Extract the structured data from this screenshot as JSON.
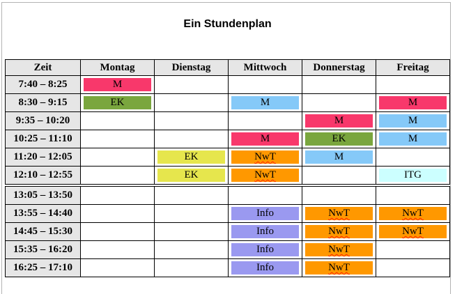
{
  "title": "Ein Stundenplan",
  "columns": [
    "Zeit",
    "Montag",
    "Dienstag",
    "Mittwoch",
    "Donnerstag",
    "Freitag"
  ],
  "palette": {
    "header_bg": "#e6e6e6",
    "grid_border": "#000000",
    "page_border": "#b3b3b3",
    "squiggle": "#ff2000",
    "pink": "#f8386b",
    "green": "#7aa63e",
    "blue": "#85c9f8",
    "yellow": "#e6e64d",
    "orange": "#ff9800",
    "purple": "#9a99f0",
    "cyan": "#ccffff"
  },
  "morning_rows": [
    {
      "time": "7:40 – 8:25",
      "cells": [
        {
          "label": "M",
          "color": "pink"
        },
        null,
        null,
        null,
        null
      ]
    },
    {
      "time": "8:30 – 9:15",
      "cells": [
        {
          "label": "EK",
          "color": "green"
        },
        null,
        {
          "label": "M",
          "color": "blue"
        },
        null,
        {
          "label": "M",
          "color": "pink"
        }
      ]
    },
    {
      "time": "9:35 – 10:20",
      "cells": [
        null,
        null,
        null,
        {
          "label": "M",
          "color": "pink"
        },
        {
          "label": "M",
          "color": "blue"
        }
      ]
    },
    {
      "time": "10:25 – 11:10",
      "cells": [
        null,
        null,
        {
          "label": "M",
          "color": "pink"
        },
        {
          "label": "EK",
          "color": "green"
        },
        {
          "label": "M",
          "color": "blue"
        }
      ]
    },
    {
      "time": "11:20 – 12:05",
      "cells": [
        null,
        {
          "label": "EK",
          "color": "yellow"
        },
        {
          "label": "NwT",
          "color": "orange",
          "misspelled": true
        },
        {
          "label": "M",
          "color": "blue"
        },
        null
      ]
    },
    {
      "time": "12:10 – 12:55",
      "cells": [
        null,
        {
          "label": "EK",
          "color": "yellow"
        },
        {
          "label": "NwT",
          "color": "orange",
          "misspelled": true
        },
        null,
        {
          "label": "ITG",
          "color": "cyan"
        }
      ]
    }
  ],
  "afternoon_rows": [
    {
      "time": "13:05 – 13:50",
      "cells": [
        null,
        null,
        null,
        null,
        null
      ]
    },
    {
      "time": "13:55 – 14:40",
      "cells": [
        null,
        null,
        {
          "label": "Info",
          "color": "purple"
        },
        {
          "label": "NwT",
          "color": "orange",
          "misspelled": true
        },
        {
          "label": "NwT",
          "color": "orange",
          "misspelled": true
        }
      ]
    },
    {
      "time": "14:45 – 15:30",
      "cells": [
        null,
        null,
        {
          "label": "Info",
          "color": "purple"
        },
        {
          "label": "NwT",
          "color": "orange",
          "misspelled": true
        },
        {
          "label": "NwT",
          "color": "orange",
          "misspelled": true
        }
      ]
    },
    {
      "time": "15:35 – 16:20",
      "cells": [
        null,
        null,
        {
          "label": "Info",
          "color": "purple"
        },
        {
          "label": "NwT",
          "color": "orange",
          "misspelled": true
        },
        null
      ]
    },
    {
      "time": "16:25 – 17:10",
      "cells": [
        null,
        null,
        {
          "label": "Info",
          "color": "purple"
        },
        {
          "label": "NwT",
          "color": "orange",
          "misspelled": true
        },
        null
      ]
    }
  ]
}
